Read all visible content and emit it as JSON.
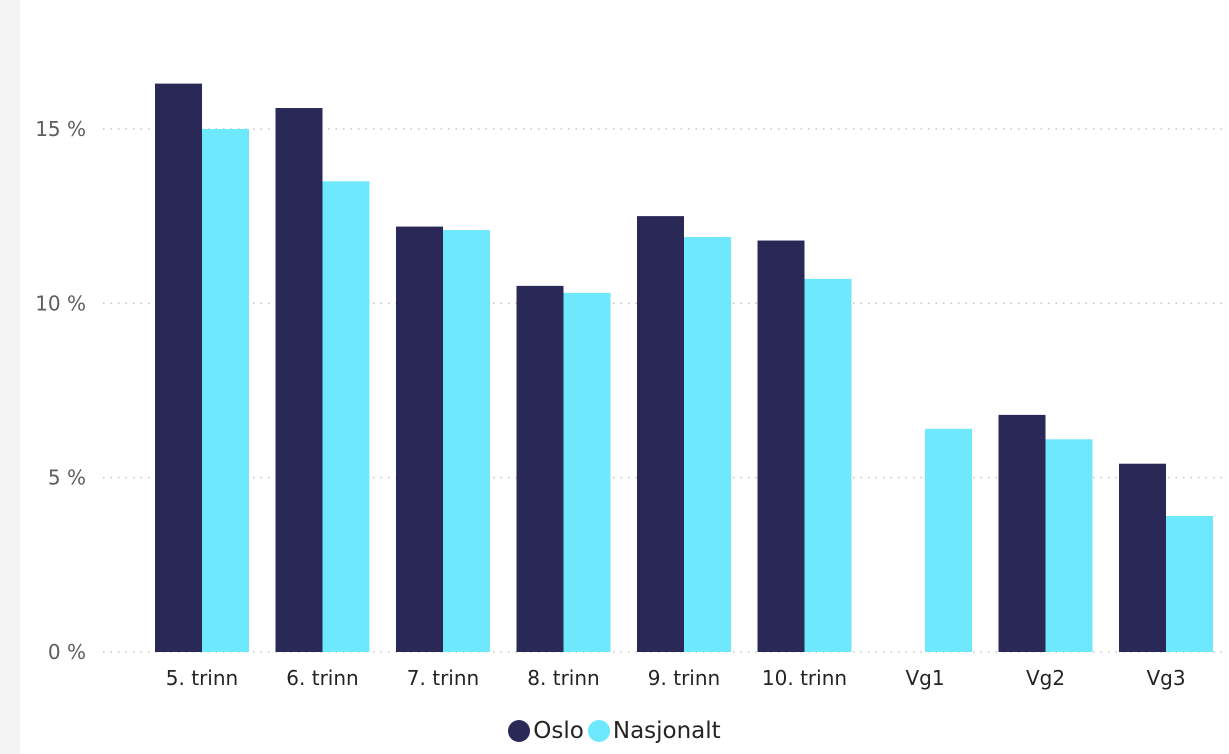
{
  "chart_data": {
    "type": "bar",
    "categories": [
      "5. trinn",
      "6. trinn",
      "7. trinn",
      "8. trinn",
      "9. trinn",
      "10. trinn",
      "Vg1",
      "Vg2",
      "Vg3"
    ],
    "series": [
      {
        "name": "Oslo",
        "color": "#2a2857",
        "values": [
          16.3,
          15.6,
          12.2,
          10.5,
          12.5,
          11.8,
          null,
          6.8,
          5.4
        ]
      },
      {
        "name": "Nasjonalt",
        "color": "#6ee8fd",
        "values": [
          15.0,
          13.5,
          12.1,
          10.3,
          11.9,
          10.7,
          6.4,
          6.1,
          3.9
        ]
      }
    ],
    "yticks": [
      {
        "value": 0,
        "label": "0 %"
      },
      {
        "value": 5,
        "label": "5 %"
      },
      {
        "value": 10,
        "label": "10 %"
      },
      {
        "value": 15,
        "label": "15 %"
      }
    ],
    "ylim": [
      0,
      17.5
    ],
    "grid": true,
    "legend_position": "bottom-center"
  }
}
